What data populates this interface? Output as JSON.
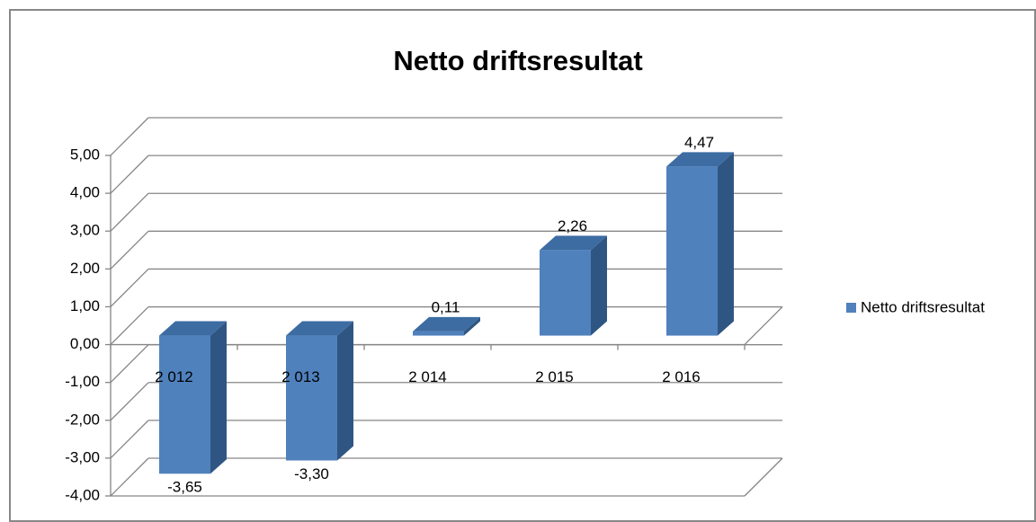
{
  "chart_data": {
    "type": "bar3d",
    "title": "Netto driftsresultat",
    "categories": [
      "2 012",
      "2 013",
      "2 014",
      "2 015",
      "2 016"
    ],
    "series": [
      {
        "name": "Netto driftsresultat",
        "color": "#4f81bd",
        "values": [
          -3.65,
          -3.3,
          0.11,
          2.26,
          4.47
        ],
        "value_labels": [
          "-3,65",
          "-3,30",
          "0,11",
          "2,26",
          "4,47"
        ]
      }
    ],
    "ylim": [
      -4,
      5
    ],
    "yticks": [
      {
        "value": -4,
        "label": "-4,00"
      },
      {
        "value": -3,
        "label": "-3,00"
      },
      {
        "value": -2,
        "label": "-2,00"
      },
      {
        "value": -1,
        "label": "-1,00"
      },
      {
        "value": 0,
        "label": "0,00"
      },
      {
        "value": 1,
        "label": "1,00"
      },
      {
        "value": 2,
        "label": "2,00"
      },
      {
        "value": 3,
        "label": "3,00"
      },
      {
        "value": 4,
        "label": "4,00"
      },
      {
        "value": 5,
        "label": "5,00"
      }
    ],
    "grid": true,
    "legend": "right"
  }
}
